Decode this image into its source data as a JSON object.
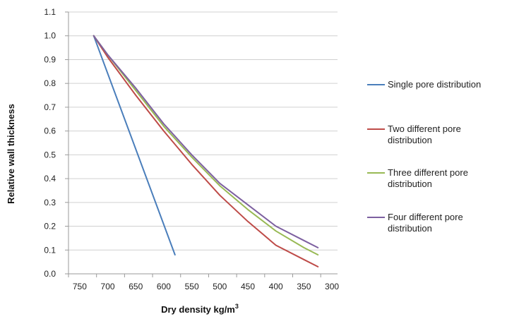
{
  "chart_data": {
    "type": "line",
    "xlabel": "Dry density  kg/m",
    "xlabel_sup": "3",
    "ylabel": "Relative wall thickness",
    "xlim": [
      770,
      290
    ],
    "ylim": [
      0,
      1.1
    ],
    "x_reversed": true,
    "x_ticks": [
      "750",
      "700",
      "650",
      "600",
      "550",
      "500",
      "450",
      "400",
      "350",
      "300"
    ],
    "y_ticks": [
      "0.0",
      "0.1",
      "0.2",
      "0.3",
      "0.4",
      "0.5",
      "0.6",
      "0.7",
      "0.8",
      "0.9",
      "1.0",
      "1.1"
    ],
    "grid": true,
    "legend_position": "right",
    "series": [
      {
        "name": "Single pore distribution",
        "color": "#4a7ebb",
        "x": [
          725,
          580
        ],
        "y": [
          1.0,
          0.08
        ]
      },
      {
        "name": "Two different pore distribution",
        "color": "#be4b48",
        "x": [
          725,
          700,
          650,
          600,
          550,
          500,
          450,
          400,
          350,
          325
        ],
        "y": [
          1.0,
          0.91,
          0.75,
          0.6,
          0.46,
          0.33,
          0.22,
          0.12,
          0.06,
          0.03
        ]
      },
      {
        "name": "Three different pore distribution",
        "color": "#98b954",
        "x": [
          725,
          700,
          650,
          600,
          550,
          500,
          450,
          400,
          350,
          325
        ],
        "y": [
          1.0,
          0.92,
          0.77,
          0.62,
          0.49,
          0.37,
          0.27,
          0.18,
          0.11,
          0.08
        ]
      },
      {
        "name": "Four different pore distribution",
        "color": "#7d60a0",
        "x": [
          725,
          700,
          650,
          600,
          550,
          500,
          450,
          400,
          350,
          325
        ],
        "y": [
          1.0,
          0.92,
          0.78,
          0.63,
          0.5,
          0.38,
          0.29,
          0.2,
          0.14,
          0.11
        ]
      }
    ]
  }
}
